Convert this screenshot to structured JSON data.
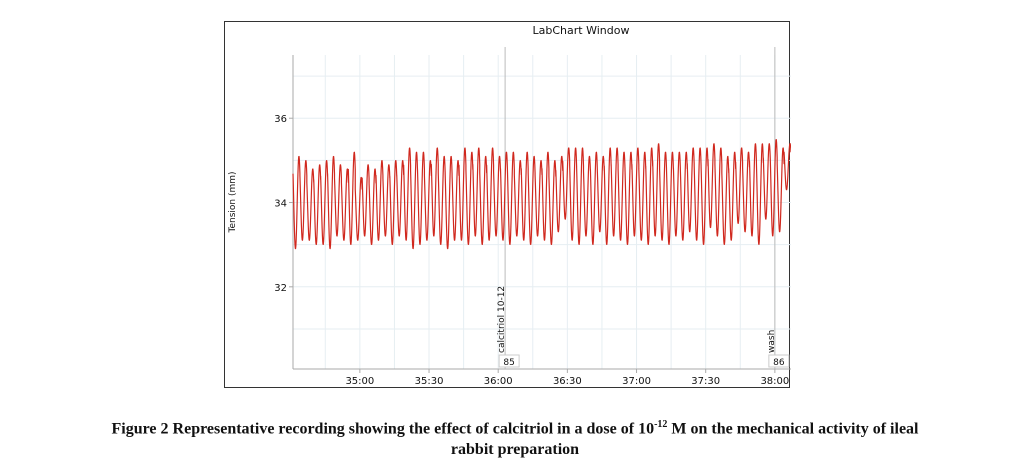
{
  "chart_data": {
    "type": "line",
    "title": "LabChart Window",
    "xlabel": "",
    "ylabel": "Tension (mm)",
    "x_unit": "time (mm:ss)",
    "xlim_seconds": [
      2071,
      2287
    ],
    "ylim": [
      30.05,
      37.5
    ],
    "x_ticks": [
      {
        "label": "35:00",
        "seconds": 2100
      },
      {
        "label": "35:30",
        "seconds": 2130
      },
      {
        "label": "36:00",
        "seconds": 2160
      },
      {
        "label": "36:30",
        "seconds": 2190
      },
      {
        "label": "37:00",
        "seconds": 2220
      },
      {
        "label": "37:30",
        "seconds": 2250
      },
      {
        "label": "38:00",
        "seconds": 2280
      }
    ],
    "y_ticks": [
      32,
      34,
      36
    ],
    "grid": true,
    "series": [
      {
        "name": "Tension",
        "color": "#d0281e",
        "description": "Regular phasic contractions ~0.33 Hz oscillating between ~33.0 and ~35.1 mm, slight upward drift to ~33.3–35.4 mm by 38:00",
        "cycle_period_s": 3.0,
        "start_s": 2071,
        "end_s": 2287,
        "peaks": [
          35.1,
          35.0,
          34.8,
          34.9,
          35.0,
          35.1,
          34.9,
          34.8,
          35.2,
          34.6,
          34.9,
          34.8,
          35.0,
          34.9,
          35.0,
          35.0,
          35.3,
          35.2,
          35.2,
          35.0,
          35.3,
          35.1,
          35.1,
          35.0,
          35.3,
          35.2,
          35.3,
          35.1,
          35.3,
          35.1,
          35.2,
          35.2,
          35.0,
          35.2,
          35.1,
          35.0,
          35.2,
          35.0,
          35.1,
          35.3,
          35.3,
          35.3,
          35.1,
          35.2,
          35.1,
          35.3,
          35.3,
          35.2,
          35.2,
          35.3,
          35.2,
          35.3,
          35.4,
          35.2,
          35.2,
          35.2,
          35.2,
          35.3,
          35.3,
          35.3,
          35.4,
          35.3,
          35.1,
          35.2,
          35.3,
          35.2,
          35.4,
          35.4,
          35.4,
          35.5,
          35.3,
          35.4
        ],
        "troughs": [
          32.9,
          33.1,
          33.1,
          33.0,
          33.0,
          32.9,
          33.2,
          33.1,
          33.0,
          33.1,
          33.2,
          33.0,
          33.1,
          33.2,
          33.0,
          33.2,
          33.1,
          32.9,
          33.0,
          33.1,
          33.2,
          33.0,
          32.9,
          33.1,
          33.1,
          33.0,
          33.2,
          33.0,
          33.1,
          33.2,
          33.1,
          33.0,
          33.2,
          33.1,
          33.0,
          33.2,
          33.1,
          33.0,
          33.3,
          33.6,
          33.1,
          33.0,
          33.2,
          33.0,
          33.3,
          33.0,
          33.2,
          33.1,
          33.0,
          33.2,
          33.1,
          33.0,
          33.2,
          33.1,
          33.0,
          33.2,
          33.1,
          33.3,
          33.1,
          33.0,
          33.4,
          33.2,
          33.0,
          33.1,
          33.5,
          33.3,
          33.2,
          33.0,
          33.6,
          33.2,
          33.3,
          34.3
        ]
      }
    ],
    "comments": [
      {
        "id": "85",
        "text": "calcitriol 10-12",
        "seconds": 2163
      },
      {
        "id": "86",
        "text": "wash",
        "seconds": 2280
      }
    ],
    "legend": "none"
  },
  "caption": {
    "prefix": "Figure 2 Representative recording showing the effect of calcitriol in a dose of 10",
    "superscript": "-12",
    "suffix": " M on the mechanical activity of ileal",
    "line2": "rabbit preparation"
  }
}
